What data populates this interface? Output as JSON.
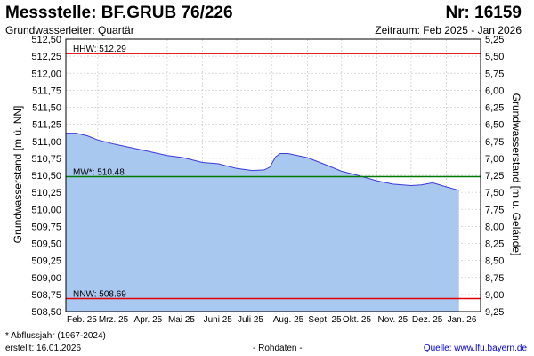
{
  "header": {
    "title": "Messstelle: BF.GRUB 76/226",
    "number": "Nr: 16159",
    "aquifer": "Grundwasserleiter: Quartär",
    "period": "Zeitraum: Feb 2025 - Jan 2026"
  },
  "footer": {
    "note": "* Abflussjahr (1967-2024)",
    "created": "erstellt:  16.01.2026",
    "rohdaten": "- Rohdaten -",
    "source": "Quelle:  www.lfu.bayern.de"
  },
  "colors": {
    "area_fill": "#a9c8f0",
    "line": "#3b3bd6",
    "hhw_line": "#e00000",
    "mw_line": "#007a00",
    "nnw_line": "#e00000",
    "grid": "#cfcfcf"
  },
  "chart_data": {
    "type": "area",
    "xlabel": "",
    "ylabel": "Grundwasserstand [m ü. NN]",
    "ylabel_right": "Grundwasserstand [m u. Gelände]",
    "ylim": [
      508.5,
      512.5
    ],
    "ylim_right": [
      9.25,
      5.25
    ],
    "yticks": [
      "508,50",
      "508,75",
      "509,00",
      "509,25",
      "509,50",
      "509,75",
      "510,00",
      "510,25",
      "510,50",
      "510,75",
      "511,00",
      "511,25",
      "511,50",
      "511,75",
      "512,00",
      "512,25",
      "512,50"
    ],
    "yticks_right": [
      "9,25",
      "9,00",
      "8,75",
      "8,50",
      "8,25",
      "8,00",
      "7,75",
      "7,50",
      "7,25",
      "7,00",
      "6,75",
      "6,50",
      "6,25",
      "6,00",
      "5,75",
      "5,50",
      "5,25"
    ],
    "xticks": [
      "Feb. 25",
      "Mrz. 25",
      "Apr. 25",
      "Mai 25",
      "Juni 25",
      "Juli 25",
      "Aug. 25",
      "Sept. 25",
      "Okt. 25",
      "Nov. 25",
      "Dez. 25",
      "Jan. 26"
    ],
    "grid": true,
    "reference_lines": [
      {
        "label": "HHW: 512.29",
        "value": 512.29
      },
      {
        "label": "MW*: 510.48",
        "value": 510.48
      },
      {
        "label": "NNW: 508.69",
        "value": 508.69
      }
    ],
    "series": [
      {
        "x": [
          "2025-02-01",
          "2025-02-10",
          "2025-02-20",
          "2025-03-01",
          "2025-03-15",
          "2025-04-01",
          "2025-04-15",
          "2025-05-01",
          "2025-05-15",
          "2025-06-01",
          "2025-06-15",
          "2025-07-01",
          "2025-07-15",
          "2025-07-25",
          "2025-07-30",
          "2025-08-04",
          "2025-08-08",
          "2025-08-15",
          "2025-09-01",
          "2025-09-15",
          "2025-10-01",
          "2025-10-15",
          "2025-11-01",
          "2025-11-15",
          "2025-12-01",
          "2025-12-10",
          "2025-12-20",
          "2026-01-01",
          "2026-01-12"
        ],
        "values": [
          511.12,
          511.12,
          511.08,
          511.02,
          510.96,
          510.9,
          510.85,
          510.79,
          510.76,
          510.69,
          510.67,
          510.6,
          510.57,
          510.58,
          510.62,
          510.77,
          510.82,
          510.82,
          510.76,
          510.67,
          510.56,
          510.5,
          510.42,
          510.37,
          510.35,
          510.36,
          510.39,
          510.33,
          510.28
        ]
      }
    ]
  }
}
